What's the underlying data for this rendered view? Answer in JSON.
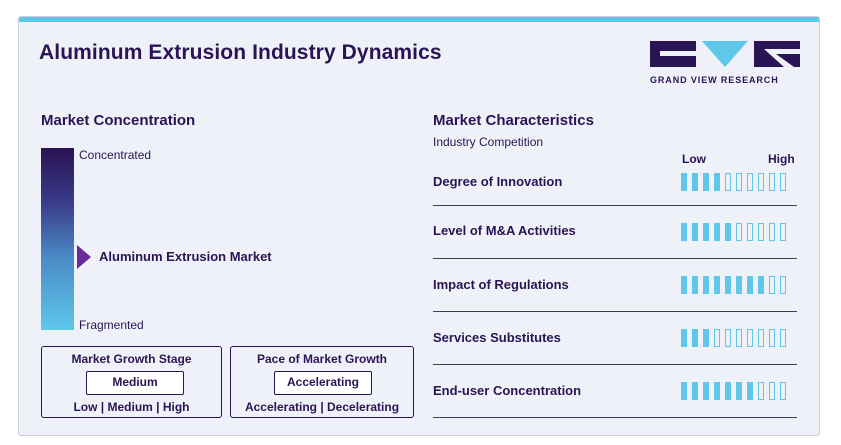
{
  "title": "Aluminum Extrusion Industry Dynamics",
  "logo": {
    "text": "GRAND VIEW RESEARCH",
    "colors": [
      "#2a1454",
      "#5fc7ea",
      "#2a1454"
    ]
  },
  "concentration": {
    "heading": "Market Concentration",
    "top_label": "Concentrated",
    "bottom_label": "Fragmented",
    "marker_label": "Aluminum Extrusion Market",
    "marker_level_fraction_from_fragmented": 0.4
  },
  "growth_stage": {
    "title": "Market Growth Stage",
    "value": "Medium",
    "options": "Low  |  Medium  |  High"
  },
  "growth_pace": {
    "title": "Pace of Market Growth",
    "value": "Accelerating",
    "options": "Accelerating  |  Decelerating"
  },
  "characteristics": {
    "heading": "Market Characteristics",
    "subheading": "Industry Competition",
    "low_label": "Low",
    "high_label": "High",
    "segments_total": 10,
    "rows": [
      {
        "label": "Degree of Innovation",
        "filled": 4
      },
      {
        "label": "Level of M&A Activities",
        "filled": 5
      },
      {
        "label": "Impact of Regulations",
        "filled": 8
      },
      {
        "label": "Services Substitutes",
        "filled": 3
      },
      {
        "label": "End-user Concentration",
        "filled": 7
      }
    ]
  },
  "colors": {
    "brand_dark": "#2a1454",
    "accent": "#5fc7ea",
    "card_bg": "#eef2f8",
    "marker": "#6a2a9a"
  }
}
